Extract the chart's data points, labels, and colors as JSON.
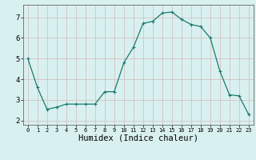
{
  "x": [
    0,
    1,
    2,
    3,
    4,
    5,
    6,
    7,
    8,
    9,
    10,
    11,
    12,
    13,
    14,
    15,
    16,
    17,
    18,
    19,
    20,
    21,
    22,
    23
  ],
  "y": [
    5.0,
    3.6,
    2.55,
    2.65,
    2.8,
    2.8,
    2.8,
    2.8,
    3.4,
    3.4,
    4.8,
    5.55,
    6.7,
    6.8,
    7.2,
    7.25,
    6.9,
    6.65,
    6.55,
    6.0,
    4.4,
    3.25,
    3.2,
    2.3
  ],
  "xlabel": "Humidex (Indice chaleur)",
  "yticks": [
    2,
    3,
    4,
    5,
    6,
    7
  ],
  "xticks": [
    0,
    1,
    2,
    3,
    4,
    5,
    6,
    7,
    8,
    9,
    10,
    11,
    12,
    13,
    14,
    15,
    16,
    17,
    18,
    19,
    20,
    21,
    22,
    23
  ],
  "xlim": [
    -0.5,
    23.5
  ],
  "ylim": [
    1.8,
    7.6
  ],
  "line_color": "#1a7a6e",
  "marker": "+",
  "marker_size": 3,
  "marker_lw": 0.8,
  "line_width": 0.9,
  "grid_color": "#d4b8b8",
  "bg_color": "#d9f0f0",
  "tick_fontsize_x": 5.0,
  "tick_fontsize_y": 6.5,
  "xlabel_fontsize": 7.5,
  "xlabel_font": "monospace"
}
